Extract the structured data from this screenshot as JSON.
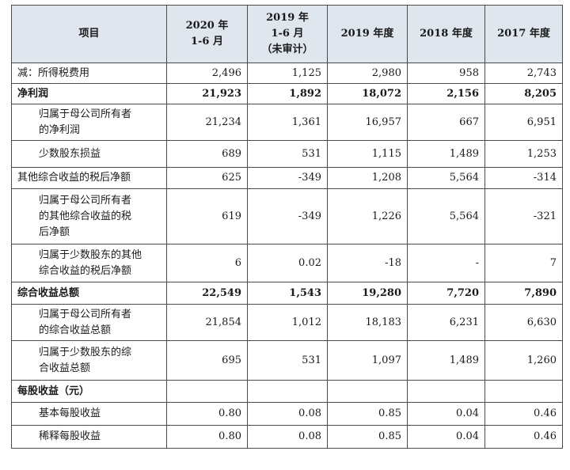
{
  "header": {
    "item": "项目",
    "cols": [
      [
        "2020 年",
        "1-6 月"
      ],
      [
        "2019 年",
        "1-6 月",
        "（未审计）"
      ],
      [
        "2019 年度"
      ],
      [
        "2018 年度"
      ],
      [
        "2017 年度"
      ]
    ]
  },
  "rows": [
    {
      "label": [
        "减：所得税费用"
      ],
      "values": [
        "2,496",
        "1,125",
        "2,980",
        "958",
        "2,743"
      ],
      "bold": false,
      "indent": false,
      "h": 26
    },
    {
      "label": [
        "净利润"
      ],
      "values": [
        "21,923",
        "1,892",
        "18,072",
        "2,156",
        "8,205"
      ],
      "bold": true,
      "indent": false,
      "h": 26
    },
    {
      "label": [
        "归属于母公司所有者",
        "的净利润"
      ],
      "values": [
        "21,234",
        "1,361",
        "16,957",
        "667",
        "6,951"
      ],
      "bold": false,
      "indent": true,
      "h": 46
    },
    {
      "label": [
        "少数股东损益"
      ],
      "values": [
        "689",
        "531",
        "1,115",
        "1,489",
        "1,253"
      ],
      "bold": false,
      "indent": true,
      "h": 34
    },
    {
      "label": [
        "其他综合收益的税后净额"
      ],
      "values": [
        "625",
        "-349",
        "1,208",
        "5,564",
        "-314"
      ],
      "bold": false,
      "indent": false,
      "h": 27
    },
    {
      "label": [
        "归属于母公司所有者",
        "的其他综合收益的税",
        "后净额"
      ],
      "values": [
        "619",
        "-349",
        "1,226",
        "5,564",
        "-321"
      ],
      "bold": false,
      "indent": true,
      "h": 70
    },
    {
      "label": [
        "归属于少数股东的其他",
        "综合收益的税后净额"
      ],
      "values": [
        "6",
        "0.02",
        "-18",
        "-",
        "7"
      ],
      "bold": false,
      "indent": true,
      "h": 48
    },
    {
      "label": [
        "综合收益总额"
      ],
      "values": [
        "22,549",
        "1,543",
        "19,280",
        "7,720",
        "7,890"
      ],
      "bold": true,
      "indent": false,
      "h": 28
    },
    {
      "label": [
        "归属于母公司所有者",
        "的综合收益总额"
      ],
      "values": [
        "21,854",
        "1,012",
        "18,183",
        "6,231",
        "6,630"
      ],
      "bold": false,
      "indent": true,
      "h": 46
    },
    {
      "label": [
        "归属于少数股东的综",
        "合收益总额"
      ],
      "values": [
        "695",
        "531",
        "1,097",
        "1,489",
        "1,260"
      ],
      "bold": false,
      "indent": true,
      "h": 50
    },
    {
      "label": [
        "每股收益（元）"
      ],
      "values": [
        "",
        "",
        "",
        "",
        ""
      ],
      "bold": true,
      "indent": false,
      "h": 28
    },
    {
      "label": [
        "基本每股收益"
      ],
      "values": [
        "0.80",
        "0.08",
        "0.85",
        "0.04",
        "0.46"
      ],
      "bold": false,
      "indent": true,
      "h": 29
    },
    {
      "label": [
        "稀释每股收益"
      ],
      "values": [
        "0.80",
        "0.08",
        "0.85",
        "0.04",
        "0.46"
      ],
      "bold": false,
      "indent": true,
      "h": 29
    }
  ]
}
